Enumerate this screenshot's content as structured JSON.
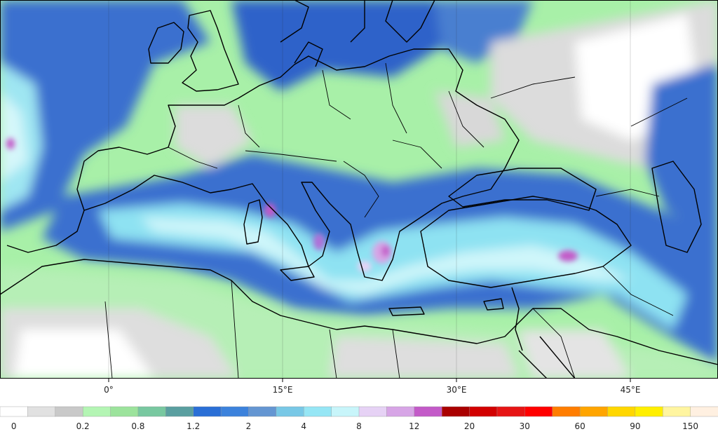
{
  "map": {
    "field_colors": {
      "ocean_blue": "#3a6fcf",
      "deep_blue": "#2a55c4",
      "cyan": "#7fe0f0",
      "pale_cyan": "#c8f4f8",
      "green": "#a8f0a8",
      "gray": "#dcdcdc",
      "white": "#ffffff",
      "magenta": "#d65bd6",
      "violet": "#b070d8"
    },
    "longitude_labels": [
      "0°",
      "15°E",
      "30°E",
      "45°E"
    ]
  },
  "colorbar": {
    "labels": [
      "0",
      "0.2",
      "0.8",
      "1.2",
      "2",
      "4",
      "8",
      "12",
      "20",
      "30",
      "60",
      "90",
      "150"
    ],
    "colors": [
      "#ffffff",
      "#e1e1e1",
      "#c9c9c9",
      "#b4f5b4",
      "#9ce39c",
      "#78c8a0",
      "#5a9fa0",
      "#2a6fd6",
      "#3c82dc",
      "#6496d2",
      "#78c8e6",
      "#96e6f5",
      "#c8f5fa",
      "#e6d2f5",
      "#d7a5e6",
      "#c35ac8",
      "#aa0000",
      "#d20000",
      "#e61414",
      "#ff0000",
      "#ff7d00",
      "#ffa500",
      "#ffd700",
      "#ffef00",
      "#fff5a0",
      "#fff0e1"
    ]
  }
}
